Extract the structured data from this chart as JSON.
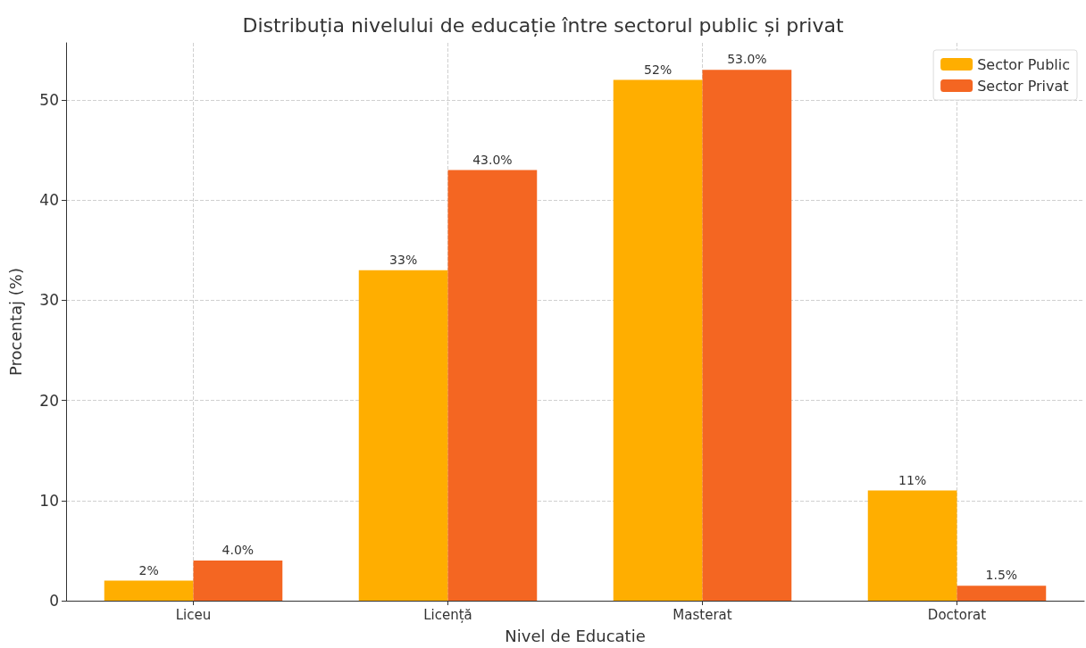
{
  "chart_data": {
    "type": "bar",
    "title": "Distribuția nivelului de educație între sectorul public și privat",
    "xlabel": "Nivel de Educatie",
    "ylabel": "Procentaj (%)",
    "categories": [
      "Liceu",
      "Licență",
      "Masterat",
      "Doctorat"
    ],
    "series": [
      {
        "name": "Sector Public",
        "color": "#ffae00",
        "values": [
          2,
          33,
          52,
          11
        ],
        "value_labels": [
          "2%",
          "33%",
          "52%",
          "11%"
        ]
      },
      {
        "name": "Sector Privat",
        "color": "#f46622",
        "values": [
          4,
          43,
          53,
          1.5
        ],
        "value_labels": [
          "4.0%",
          "43.0%",
          "53.0%",
          "1.5%"
        ]
      }
    ],
    "ylim": [
      0,
      55.7
    ],
    "yticks": [
      0,
      10,
      20,
      30,
      40,
      50
    ],
    "grid": true,
    "legend": "top right"
  }
}
